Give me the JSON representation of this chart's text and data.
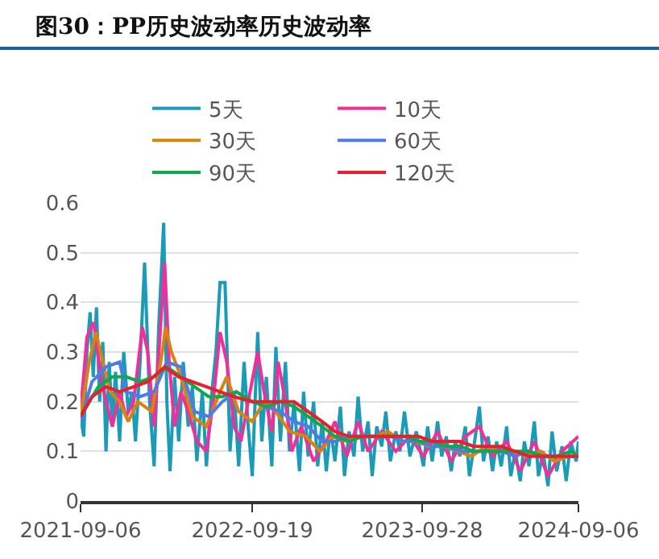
{
  "chart_data": {
    "type": "line",
    "title": "图30：PP历史波动率历史波动率",
    "xlim": [
      "2021-09-06",
      "2024-09-06"
    ],
    "xticks": [
      {
        "value": "2021-09-06",
        "label": "2021-09-06"
      },
      {
        "value": "2022-09-19",
        "label": "2022-09-19"
      },
      {
        "value": "2023-09-28",
        "label": "2023-09-28"
      },
      {
        "value": "2024-09-06",
        "label": "2024-09-06"
      }
    ],
    "ylim": [
      0,
      0.6
    ],
    "yticks": [
      0,
      0.1,
      0.2,
      0.3,
      0.4,
      0.5,
      0.6
    ],
    "grid": "y",
    "legend": "top",
    "marker": "none",
    "line_style": "solid",
    "series": [
      {
        "name": "5天",
        "color": "#1a9bb8",
        "x": [
          "2021-09-06",
          "2021-09-13",
          "2021-09-20",
          "2021-09-27",
          "2021-10-04",
          "2021-10-11",
          "2021-10-18",
          "2021-10-25",
          "2021-11-01",
          "2021-11-08",
          "2021-11-15",
          "2021-11-22",
          "2021-12-01",
          "2021-12-10",
          "2021-12-20",
          "2021-12-28",
          "2022-01-05",
          "2022-01-15",
          "2022-01-25",
          "2022-02-05",
          "2022-02-15",
          "2022-02-25",
          "2022-03-08",
          "2022-03-15",
          "2022-03-22",
          "2022-04-01",
          "2022-04-10",
          "2022-04-20",
          "2022-05-01",
          "2022-05-10",
          "2022-05-20",
          "2022-06-01",
          "2022-06-10",
          "2022-06-20",
          "2022-07-01",
          "2022-07-10",
          "2022-07-21",
          "2022-08-01",
          "2022-08-10",
          "2022-08-20",
          "2022-09-01",
          "2022-09-10",
          "2022-09-19",
          "2022-10-01",
          "2022-10-10",
          "2022-10-20",
          "2022-11-01",
          "2022-11-10",
          "2022-11-20",
          "2022-12-01",
          "2022-12-10",
          "2022-12-20",
          "2023-01-01",
          "2023-01-10",
          "2023-01-20",
          "2023-02-01",
          "2023-02-10",
          "2023-02-20",
          "2023-03-01",
          "2023-03-10",
          "2023-03-20",
          "2023-04-01",
          "2023-04-10",
          "2023-04-20",
          "2023-05-01",
          "2023-05-10",
          "2023-05-20",
          "2023-06-01",
          "2023-06-10",
          "2023-06-20",
          "2023-07-01",
          "2023-07-10",
          "2023-07-20",
          "2023-08-01",
          "2023-08-10",
          "2023-08-20",
          "2023-09-01",
          "2023-09-15",
          "2023-10-01",
          "2023-10-10",
          "2023-10-20",
          "2023-11-01",
          "2023-11-10",
          "2023-11-20",
          "2023-12-01",
          "2023-12-10",
          "2023-12-20",
          "2024-01-01",
          "2024-01-10",
          "2024-01-20",
          "2024-02-01",
          "2024-02-10",
          "2024-02-20",
          "2024-03-01",
          "2024-03-10",
          "2024-03-20",
          "2024-04-01",
          "2024-04-10",
          "2024-04-20",
          "2024-05-01",
          "2024-05-10",
          "2024-05-20",
          "2024-06-01",
          "2024-06-10",
          "2024-06-20",
          "2024-07-01",
          "2024-07-10",
          "2024-07-20",
          "2024-08-01",
          "2024-08-10",
          "2024-08-20",
          "2024-09-01",
          "2024-09-06"
        ],
        "values": [
          0.17,
          0.13,
          0.3,
          0.38,
          0.25,
          0.39,
          0.2,
          0.32,
          0.1,
          0.28,
          0.15,
          0.26,
          0.12,
          0.3,
          0.18,
          0.22,
          0.12,
          0.28,
          0.48,
          0.2,
          0.07,
          0.35,
          0.56,
          0.2,
          0.06,
          0.25,
          0.12,
          0.28,
          0.15,
          0.23,
          0.08,
          0.22,
          0.07,
          0.2,
          0.3,
          0.44,
          0.44,
          0.1,
          0.22,
          0.07,
          0.28,
          0.15,
          0.05,
          0.34,
          0.12,
          0.25,
          0.07,
          0.31,
          0.12,
          0.28,
          0.1,
          0.2,
          0.06,
          0.22,
          0.09,
          0.2,
          0.07,
          0.16,
          0.06,
          0.15,
          0.08,
          0.19,
          0.05,
          0.14,
          0.09,
          0.21,
          0.1,
          0.16,
          0.05,
          0.15,
          0.11,
          0.18,
          0.08,
          0.14,
          0.1,
          0.18,
          0.09,
          0.14,
          0.07,
          0.15,
          0.08,
          0.16,
          0.09,
          0.13,
          0.06,
          0.12,
          0.09,
          0.15,
          0.05,
          0.11,
          0.19,
          0.08,
          0.13,
          0.06,
          0.12,
          0.07,
          0.15,
          0.05,
          0.1,
          0.04,
          0.12,
          0.07,
          0.16,
          0.05,
          0.1,
          0.03,
          0.14,
          0.06,
          0.11,
          0.04,
          0.12,
          0.08,
          0.12
        ]
      },
      {
        "name": "10天",
        "color": "#f0309a",
        "x": [
          "2021-09-06",
          "2021-09-20",
          "2021-10-05",
          "2021-10-20",
          "2021-11-01",
          "2021-11-15",
          "2021-12-01",
          "2021-12-15",
          "2022-01-01",
          "2022-01-20",
          "2022-02-01",
          "2022-02-15",
          "2022-03-01",
          "2022-03-10",
          "2022-03-20",
          "2022-04-01",
          "2022-04-15",
          "2022-05-01",
          "2022-05-20",
          "2022-06-10",
          "2022-06-25",
          "2022-07-10",
          "2022-07-25",
          "2022-08-10",
          "2022-08-25",
          "2022-09-10",
          "2022-10-01",
          "2022-10-15",
          "2022-11-01",
          "2022-11-15",
          "2022-12-01",
          "2022-12-15",
          "2023-01-05",
          "2023-02-01",
          "2023-03-01",
          "2023-03-20",
          "2023-04-15",
          "2023-05-10",
          "2023-06-01",
          "2023-07-01",
          "2023-08-01",
          "2023-09-01",
          "2023-10-01",
          "2023-11-01",
          "2023-12-01",
          "2024-01-01",
          "2024-02-01",
          "2024-03-01",
          "2024-04-01",
          "2024-05-01",
          "2024-06-01",
          "2024-07-01",
          "2024-08-01",
          "2024-09-06"
        ],
        "values": [
          0.18,
          0.33,
          0.36,
          0.25,
          0.2,
          0.15,
          0.22,
          0.17,
          0.2,
          0.35,
          0.3,
          0.15,
          0.35,
          0.48,
          0.28,
          0.15,
          0.22,
          0.18,
          0.12,
          0.1,
          0.2,
          0.34,
          0.28,
          0.15,
          0.12,
          0.2,
          0.3,
          0.22,
          0.14,
          0.28,
          0.2,
          0.1,
          0.15,
          0.08,
          0.12,
          0.16,
          0.09,
          0.16,
          0.1,
          0.14,
          0.1,
          0.13,
          0.09,
          0.14,
          0.08,
          0.13,
          0.15,
          0.09,
          0.12,
          0.06,
          0.12,
          0.05,
          0.1,
          0.13
        ]
      },
      {
        "name": "30天",
        "color": "#d9820f",
        "x": [
          "2021-09-06",
          "2021-09-25",
          "2021-10-10",
          "2021-10-25",
          "2021-11-10",
          "2021-12-01",
          "2021-12-20",
          "2022-01-10",
          "2022-02-10",
          "2022-03-05",
          "2022-03-12",
          "2022-03-25",
          "2022-04-15",
          "2022-05-10",
          "2022-06-10",
          "2022-07-10",
          "2022-07-25",
          "2022-08-20",
          "2022-09-19",
          "2022-10-15",
          "2022-11-10",
          "2022-12-10",
          "2023-01-15",
          "2023-02-15",
          "2023-03-15",
          "2023-04-15",
          "2023-05-15",
          "2023-06-15",
          "2023-07-15",
          "2023-08-15",
          "2023-09-15",
          "2023-10-15",
          "2023-11-15",
          "2023-12-15",
          "2024-01-15",
          "2024-02-15",
          "2024-03-15",
          "2024-04-15",
          "2024-05-15",
          "2024-06-15",
          "2024-07-15",
          "2024-08-15",
          "2024-09-06"
        ],
        "values": [
          0.17,
          0.28,
          0.34,
          0.28,
          0.22,
          0.2,
          0.16,
          0.2,
          0.18,
          0.3,
          0.35,
          0.3,
          0.25,
          0.17,
          0.15,
          0.22,
          0.25,
          0.18,
          0.16,
          0.2,
          0.18,
          0.14,
          0.13,
          0.1,
          0.13,
          0.12,
          0.13,
          0.13,
          0.14,
          0.12,
          0.12,
          0.11,
          0.11,
          0.1,
          0.09,
          0.11,
          0.1,
          0.1,
          0.09,
          0.1,
          0.08,
          0.09,
          0.09
        ]
      },
      {
        "name": "60天",
        "color": "#4f7be8",
        "x": [
          "2021-09-06",
          "2021-10-01",
          "2021-11-01",
          "2021-12-01",
          "2021-12-15",
          "2022-01-15",
          "2022-02-15",
          "2022-03-15",
          "2022-04-15",
          "2022-05-15",
          "2022-06-15",
          "2022-07-15",
          "2022-08-15",
          "2022-09-19",
          "2022-10-20",
          "2022-11-20",
          "2022-12-20",
          "2023-01-20",
          "2023-02-20",
          "2023-03-20",
          "2023-04-20",
          "2023-05-20",
          "2023-06-20",
          "2023-07-20",
          "2023-08-20",
          "2023-09-20",
          "2023-10-20",
          "2023-11-20",
          "2023-12-20",
          "2024-01-20",
          "2024-02-20",
          "2024-03-20",
          "2024-04-20",
          "2024-05-20",
          "2024-06-20",
          "2024-07-20",
          "2024-08-20",
          "2024-09-06"
        ],
        "values": [
          0.16,
          0.24,
          0.27,
          0.28,
          0.22,
          0.21,
          0.22,
          0.28,
          0.27,
          0.18,
          0.17,
          0.2,
          0.22,
          0.2,
          0.19,
          0.18,
          0.16,
          0.15,
          0.12,
          0.12,
          0.13,
          0.13,
          0.13,
          0.13,
          0.12,
          0.12,
          0.11,
          0.11,
          0.1,
          0.1,
          0.1,
          0.1,
          0.09,
          0.1,
          0.09,
          0.09,
          0.09,
          0.09
        ]
      },
      {
        "name": "90天",
        "color": "#0fa84a",
        "x": [
          "2021-09-06",
          "2021-10-15",
          "2021-11-15",
          "2021-12-15",
          "2022-01-15",
          "2022-02-15",
          "2022-03-15",
          "2022-04-15",
          "2022-05-15",
          "2022-06-15",
          "2022-07-15",
          "2022-08-15",
          "2022-09-19",
          "2022-10-20",
          "2022-11-20",
          "2022-12-20",
          "2023-01-20",
          "2023-02-20",
          "2023-03-20",
          "2023-04-20",
          "2023-05-20",
          "2023-06-20",
          "2023-07-20",
          "2023-08-20",
          "2023-09-20",
          "2023-10-20",
          "2023-11-20",
          "2023-12-20",
          "2024-01-20",
          "2024-02-20",
          "2024-03-20",
          "2024-04-20",
          "2024-05-20",
          "2024-06-20",
          "2024-07-20",
          "2024-08-20",
          "2024-09-06"
        ],
        "values": [
          0.17,
          0.23,
          0.25,
          0.25,
          0.24,
          0.25,
          0.27,
          0.25,
          0.23,
          0.21,
          0.21,
          0.22,
          0.2,
          0.19,
          0.2,
          0.19,
          0.17,
          0.15,
          0.13,
          0.12,
          0.13,
          0.13,
          0.13,
          0.13,
          0.12,
          0.12,
          0.11,
          0.11,
          0.1,
          0.1,
          0.1,
          0.1,
          0.1,
          0.09,
          0.09,
          0.1,
          0.09
        ]
      },
      {
        "name": "120天",
        "color": "#e8202e",
        "x": [
          "2021-09-06",
          "2021-10-01",
          "2021-11-01",
          "2021-12-01",
          "2022-01-01",
          "2022-02-01",
          "2022-03-10",
          "2022-04-10",
          "2022-05-10",
          "2022-06-10",
          "2022-07-10",
          "2022-08-10",
          "2022-09-19",
          "2022-10-20",
          "2022-11-20",
          "2022-12-20",
          "2023-01-20",
          "2023-02-20",
          "2023-03-20",
          "2023-04-20",
          "2023-05-20",
          "2023-06-20",
          "2023-07-20",
          "2023-08-20",
          "2023-09-20",
          "2023-10-20",
          "2023-11-20",
          "2023-12-20",
          "2024-01-20",
          "2024-02-20",
          "2024-03-20",
          "2024-04-20",
          "2024-05-20",
          "2024-06-20",
          "2024-07-20",
          "2024-08-20",
          "2024-09-06"
        ],
        "values": [
          0.17,
          0.21,
          0.23,
          0.22,
          0.23,
          0.24,
          0.27,
          0.25,
          0.24,
          0.23,
          0.22,
          0.21,
          0.2,
          0.2,
          0.2,
          0.2,
          0.18,
          0.16,
          0.14,
          0.13,
          0.13,
          0.13,
          0.13,
          0.13,
          0.13,
          0.12,
          0.12,
          0.12,
          0.11,
          0.11,
          0.11,
          0.1,
          0.09,
          0.09,
          0.09,
          0.09,
          0.09
        ]
      }
    ]
  }
}
